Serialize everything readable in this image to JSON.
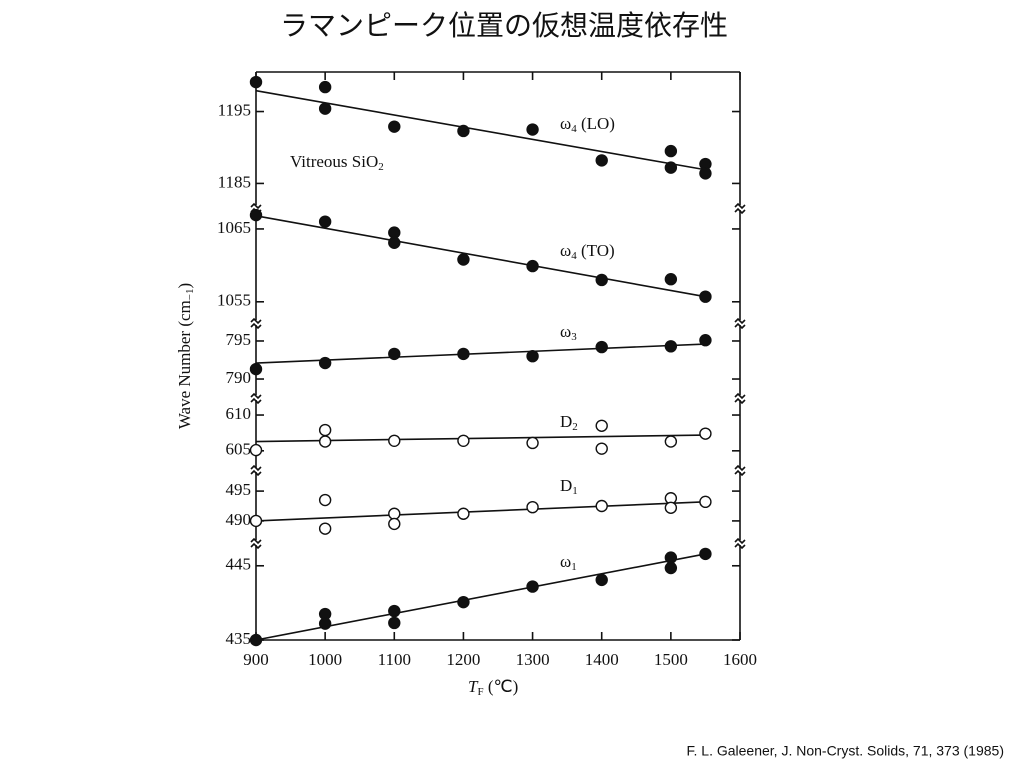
{
  "chart_data": {
    "type": "scatter",
    "title": "ラマンピーク位置の仮想温度依存性",
    "citation": "F. L. Galeener, J. Non-Cryst. Solids, 71, 373 (1985)",
    "xlabel": [
      "T",
      "F",
      " (℃)"
    ],
    "ylabel": [
      "Wave Number (cm",
      "−1",
      ")"
    ],
    "xlim": [
      900,
      1600
    ],
    "xticks": [
      900,
      1000,
      1100,
      1200,
      1300,
      1400,
      1500,
      1600
    ],
    "panels": [
      {
        "label": [
          "ω",
          "4",
          " (LO)"
        ],
        "note": [
          "Vitreous SiO",
          "2"
        ],
        "marker": "filled",
        "ylim": [
          1182,
          1200.5
        ],
        "yticks": [
          1185,
          1195
        ],
        "points": {
          "x": [
            900,
            1000,
            1000,
            1100,
            1200,
            1300,
            1400,
            1500,
            1500,
            1550,
            1550
          ],
          "values": [
            1199.1,
            1198.4,
            1195.4,
            1192.9,
            1192.3,
            1192.5,
            1188.2,
            1189.5,
            1187.2,
            1187.7,
            1186.4
          ]
        },
        "fit": {
          "x": [
            900,
            1550
          ],
          "values": [
            1197.9,
            1186.9
          ]
        }
      },
      {
        "label": [
          "ω",
          "4",
          " (TO)"
        ],
        "marker": "filled",
        "ylim": [
          1052.5,
          1067.6
        ],
        "yticks": [
          1055,
          1065
        ],
        "points": {
          "x": [
            900,
            1000,
            1100,
            1100,
            1200,
            1300,
            1400,
            1500,
            1550
          ],
          "values": [
            1066.9,
            1066.0,
            1064.5,
            1063.1,
            1060.8,
            1059.9,
            1058.0,
            1058.1,
            1055.7
          ]
        },
        "fit": {
          "x": [
            900,
            1550
          ],
          "values": [
            1066.8,
            1055.7
          ]
        }
      },
      {
        "label": [
          "ω",
          "3",
          ""
        ],
        "marker": "filled",
        "ylim": [
          787.9,
          797.1
        ],
        "yticks": [
          790,
          795
        ],
        "points": {
          "x": [
            900,
            1000,
            1100,
            1200,
            1300,
            1400,
            1500,
            1550
          ],
          "values": [
            791.3,
            792.1,
            793.3,
            793.3,
            793.0,
            794.2,
            794.3,
            795.1
          ]
        },
        "fit": {
          "x": [
            900,
            1550
          ],
          "values": [
            792.1,
            794.6
          ]
        }
      },
      {
        "label": [
          "D",
          "2",
          ""
        ],
        "marker": "open",
        "ylim": [
          602.6,
          612.1
        ],
        "yticks": [
          605,
          610
        ],
        "points": {
          "x": [
            900,
            1000,
            1000,
            1100,
            1200,
            1300,
            1400,
            1400,
            1500,
            1550
          ],
          "values": [
            605.1,
            607.9,
            606.3,
            606.4,
            606.4,
            606.1,
            608.5,
            605.3,
            606.3,
            607.4
          ]
        },
        "fit": {
          "x": [
            900,
            1550
          ],
          "values": [
            606.3,
            607.2
          ]
        }
      },
      {
        "label": [
          "D",
          "1",
          ""
        ],
        "marker": "open",
        "ylim": [
          486.8,
          498.2
        ],
        "yticks": [
          490,
          495
        ],
        "points": {
          "x": [
            900,
            1000,
            1000,
            1100,
            1100,
            1200,
            1300,
            1400,
            1500,
            1500,
            1550
          ],
          "values": [
            490.0,
            493.5,
            488.7,
            491.2,
            489.5,
            491.2,
            492.3,
            492.5,
            493.8,
            492.2,
            493.2
          ]
        },
        "fit": {
          "x": [
            900,
            1550
          ],
          "values": [
            490.0,
            493.2
          ]
        }
      },
      {
        "label": [
          "ω",
          "1",
          ""
        ],
        "marker": "filled",
        "ylim": [
          435,
          447.8
        ],
        "yticks": [
          435,
          445
        ],
        "points": {
          "x": [
            900,
            1000,
            1000,
            1100,
            1100,
            1200,
            1300,
            1400,
            1500,
            1500,
            1550
          ],
          "values": [
            435.0,
            438.5,
            437.2,
            438.9,
            437.3,
            440.1,
            442.2,
            443.1,
            446.1,
            444.7,
            446.6
          ]
        },
        "fit": {
          "x": [
            900,
            1550
          ],
          "values": [
            435.0,
            446.6
          ]
        }
      }
    ]
  }
}
